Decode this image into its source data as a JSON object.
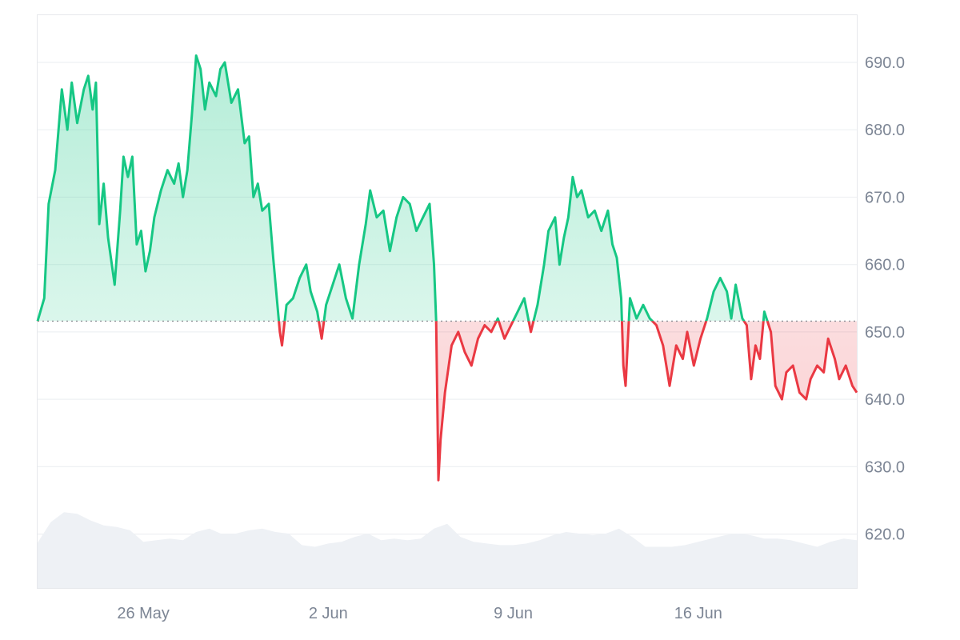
{
  "chart_data": {
    "type": "line",
    "title": "",
    "xlabel": "",
    "ylabel": "",
    "baseline": 651.6,
    "x_range": [
      "2025-05-22",
      "2025-06-22"
    ],
    "ylim": [
      612,
      697
    ],
    "grid": true,
    "colors": {
      "above": "#16c784",
      "below": "#ea3943",
      "above_fill": "#16c784",
      "below_fill": "#ea3943",
      "volume": "#eef1f5",
      "grid": "#eef0f3",
      "baseline": "#8c8f96",
      "tick_text": "#7d8695"
    },
    "y_ticks": [
      {
        "value": 620,
        "label": "620.0"
      },
      {
        "value": 630,
        "label": "630.0"
      },
      {
        "value": 640,
        "label": "640.0"
      },
      {
        "value": 650,
        "label": "650.0"
      },
      {
        "value": 660,
        "label": "660.0"
      },
      {
        "value": 670,
        "label": "670.0"
      },
      {
        "value": 680,
        "label": "680.0"
      },
      {
        "value": 690,
        "label": "690.0"
      }
    ],
    "x_ticks": [
      {
        "value": "2025-05-26",
        "label": "26 May"
      },
      {
        "value": "2025-06-02",
        "label": "2 Jun"
      },
      {
        "value": "2025-06-09",
        "label": "9 Jun"
      },
      {
        "value": "2025-06-16",
        "label": "16 Jun"
      }
    ],
    "series": [
      {
        "values": [
          [
            "2025-05-22T00:00",
            651.6
          ],
          [
            "2025-05-22T06:00",
            655
          ],
          [
            "2025-05-22T10:00",
            669
          ],
          [
            "2025-05-22T16:00",
            674
          ],
          [
            "2025-05-22T22:00",
            686
          ],
          [
            "2025-05-23T03:00",
            680
          ],
          [
            "2025-05-23T07:00",
            687
          ],
          [
            "2025-05-23T12:00",
            681
          ],
          [
            "2025-05-23T18:00",
            686
          ],
          [
            "2025-05-23T22:00",
            688
          ],
          [
            "2025-05-24T02:00",
            683
          ],
          [
            "2025-05-24T05:00",
            687
          ],
          [
            "2025-05-24T08:00",
            666
          ],
          [
            "2025-05-24T12:00",
            672
          ],
          [
            "2025-05-24T16:00",
            664
          ],
          [
            "2025-05-24T22:00",
            657
          ],
          [
            "2025-05-25T03:00",
            668
          ],
          [
            "2025-05-25T06:00",
            676
          ],
          [
            "2025-05-25T10:00",
            673
          ],
          [
            "2025-05-25T14:00",
            676
          ],
          [
            "2025-05-25T18:00",
            663
          ],
          [
            "2025-05-25T22:00",
            665
          ],
          [
            "2025-05-26T02:00",
            659
          ],
          [
            "2025-05-26T06:00",
            662
          ],
          [
            "2025-05-26T10:00",
            667
          ],
          [
            "2025-05-26T16:00",
            671
          ],
          [
            "2025-05-26T22:00",
            674
          ],
          [
            "2025-05-27T04:00",
            672
          ],
          [
            "2025-05-27T08:00",
            675
          ],
          [
            "2025-05-27T12:00",
            670
          ],
          [
            "2025-05-27T16:00",
            674
          ],
          [
            "2025-05-27T20:00",
            682
          ],
          [
            "2025-05-28T00:00",
            691
          ],
          [
            "2025-05-28T04:00",
            689
          ],
          [
            "2025-05-28T08:00",
            683
          ],
          [
            "2025-05-28T12:00",
            687
          ],
          [
            "2025-05-28T18:00",
            685
          ],
          [
            "2025-05-28T22:00",
            689
          ],
          [
            "2025-05-29T02:00",
            690
          ],
          [
            "2025-05-29T08:00",
            684
          ],
          [
            "2025-05-29T14:00",
            686
          ],
          [
            "2025-05-29T20:00",
            678
          ],
          [
            "2025-05-30T00:00",
            679
          ],
          [
            "2025-05-30T04:00",
            670
          ],
          [
            "2025-05-30T08:00",
            672
          ],
          [
            "2025-05-30T12:00",
            668
          ],
          [
            "2025-05-30T18:00",
            669
          ],
          [
            "2025-05-30T22:00",
            661
          ],
          [
            "2025-05-31T04:00",
            650
          ],
          [
            "2025-05-31T06:00",
            648
          ],
          [
            "2025-05-31T10:00",
            654
          ],
          [
            "2025-05-31T16:00",
            655
          ],
          [
            "2025-05-31T22:00",
            658
          ],
          [
            "2025-06-01T04:00",
            660
          ],
          [
            "2025-06-01T08:00",
            656
          ],
          [
            "2025-06-01T14:00",
            653
          ],
          [
            "2025-06-01T18:00",
            649
          ],
          [
            "2025-06-01T22:00",
            654
          ],
          [
            "2025-06-02T04:00",
            657
          ],
          [
            "2025-06-02T10:00",
            660
          ],
          [
            "2025-06-02T16:00",
            655
          ],
          [
            "2025-06-02T22:00",
            652
          ],
          [
            "2025-06-03T04:00",
            660
          ],
          [
            "2025-06-03T10:00",
            666
          ],
          [
            "2025-06-03T14:00",
            671
          ],
          [
            "2025-06-03T20:00",
            667
          ],
          [
            "2025-06-04T02:00",
            668
          ],
          [
            "2025-06-04T08:00",
            662
          ],
          [
            "2025-06-04T14:00",
            667
          ],
          [
            "2025-06-04T20:00",
            670
          ],
          [
            "2025-06-05T02:00",
            669
          ],
          [
            "2025-06-05T08:00",
            665
          ],
          [
            "2025-06-05T14:00",
            667
          ],
          [
            "2025-06-05T20:00",
            669
          ],
          [
            "2025-06-06T00:00",
            660
          ],
          [
            "2025-06-06T02:00",
            651.6
          ],
          [
            "2025-06-06T04:00",
            628
          ],
          [
            "2025-06-06T06:00",
            634
          ],
          [
            "2025-06-06T10:00",
            641
          ],
          [
            "2025-06-06T16:00",
            648
          ],
          [
            "2025-06-06T22:00",
            650
          ],
          [
            "2025-06-07T04:00",
            647
          ],
          [
            "2025-06-07T10:00",
            645
          ],
          [
            "2025-06-07T16:00",
            649
          ],
          [
            "2025-06-07T22:00",
            651
          ],
          [
            "2025-06-08T04:00",
            650
          ],
          [
            "2025-06-08T10:00",
            652
          ],
          [
            "2025-06-08T16:00",
            649
          ],
          [
            "2025-06-08T22:00",
            651
          ],
          [
            "2025-06-09T04:00",
            653
          ],
          [
            "2025-06-09T10:00",
            655
          ],
          [
            "2025-06-09T16:00",
            650
          ],
          [
            "2025-06-09T22:00",
            654
          ],
          [
            "2025-06-10T04:00",
            660
          ],
          [
            "2025-06-10T08:00",
            665
          ],
          [
            "2025-06-10T14:00",
            667
          ],
          [
            "2025-06-10T18:00",
            660
          ],
          [
            "2025-06-10T22:00",
            664
          ],
          [
            "2025-06-11T02:00",
            667
          ],
          [
            "2025-06-11T06:00",
            673
          ],
          [
            "2025-06-11T10:00",
            670
          ],
          [
            "2025-06-11T14:00",
            671
          ],
          [
            "2025-06-11T20:00",
            667
          ],
          [
            "2025-06-12T02:00",
            668
          ],
          [
            "2025-06-12T08:00",
            665
          ],
          [
            "2025-06-12T14:00",
            668
          ],
          [
            "2025-06-12T18:00",
            663
          ],
          [
            "2025-06-12T22:00",
            661
          ],
          [
            "2025-06-13T02:00",
            655
          ],
          [
            "2025-06-13T04:00",
            645
          ],
          [
            "2025-06-13T06:00",
            642
          ],
          [
            "2025-06-13T10:00",
            655
          ],
          [
            "2025-06-13T16:00",
            652
          ],
          [
            "2025-06-13T22:00",
            654
          ],
          [
            "2025-06-14T04:00",
            652
          ],
          [
            "2025-06-14T10:00",
            651
          ],
          [
            "2025-06-14T16:00",
            648
          ],
          [
            "2025-06-14T22:00",
            642
          ],
          [
            "2025-06-15T04:00",
            648
          ],
          [
            "2025-06-15T10:00",
            646
          ],
          [
            "2025-06-15T14:00",
            650
          ],
          [
            "2025-06-15T20:00",
            645
          ],
          [
            "2025-06-16T02:00",
            649
          ],
          [
            "2025-06-16T08:00",
            652
          ],
          [
            "2025-06-16T14:00",
            656
          ],
          [
            "2025-06-16T20:00",
            658
          ],
          [
            "2025-06-17T02:00",
            656
          ],
          [
            "2025-06-17T06:00",
            652
          ],
          [
            "2025-06-17T10:00",
            657
          ],
          [
            "2025-06-17T16:00",
            652
          ],
          [
            "2025-06-17T20:00",
            651
          ],
          [
            "2025-06-18T00:00",
            643
          ],
          [
            "2025-06-18T04:00",
            648
          ],
          [
            "2025-06-18T08:00",
            646
          ],
          [
            "2025-06-18T12:00",
            653
          ],
          [
            "2025-06-18T18:00",
            650
          ],
          [
            "2025-06-18T22:00",
            642
          ],
          [
            "2025-06-19T04:00",
            640
          ],
          [
            "2025-06-19T08:00",
            644
          ],
          [
            "2025-06-19T14:00",
            645
          ],
          [
            "2025-06-19T20:00",
            641
          ],
          [
            "2025-06-20T02:00",
            640
          ],
          [
            "2025-06-20T06:00",
            643
          ],
          [
            "2025-06-20T12:00",
            645
          ],
          [
            "2025-06-20T18:00",
            644
          ],
          [
            "2025-06-20T22:00",
            649
          ],
          [
            "2025-06-21T04:00",
            646
          ],
          [
            "2025-06-21T08:00",
            643
          ],
          [
            "2025-06-21T14:00",
            645
          ],
          [
            "2025-06-21T20:00",
            642
          ],
          [
            "2025-06-22T00:00",
            641
          ]
        ]
      }
    ],
    "volume_relative": [
      [
        "2025-05-22T00:00",
        0.55
      ],
      [
        "2025-05-22T12:00",
        0.8
      ],
      [
        "2025-05-23T00:00",
        0.92
      ],
      [
        "2025-05-23T12:00",
        0.9
      ],
      [
        "2025-05-24T00:00",
        0.82
      ],
      [
        "2025-05-24T12:00",
        0.76
      ],
      [
        "2025-05-25T00:00",
        0.74
      ],
      [
        "2025-05-25T12:00",
        0.7
      ],
      [
        "2025-05-26T00:00",
        0.56
      ],
      [
        "2025-05-26T12:00",
        0.58
      ],
      [
        "2025-05-27T00:00",
        0.6
      ],
      [
        "2025-05-27T12:00",
        0.58
      ],
      [
        "2025-05-28T00:00",
        0.68
      ],
      [
        "2025-05-28T12:00",
        0.72
      ],
      [
        "2025-05-29T00:00",
        0.65
      ],
      [
        "2025-05-29T12:00",
        0.66
      ],
      [
        "2025-05-30T00:00",
        0.7
      ],
      [
        "2025-05-30T12:00",
        0.72
      ],
      [
        "2025-05-31T00:00",
        0.68
      ],
      [
        "2025-05-31T12:00",
        0.66
      ],
      [
        "2025-06-01T00:00",
        0.52
      ],
      [
        "2025-06-01T12:00",
        0.5
      ],
      [
        "2025-06-02T00:00",
        0.54
      ],
      [
        "2025-06-02T12:00",
        0.56
      ],
      [
        "2025-06-03T00:00",
        0.62
      ],
      [
        "2025-06-03T12:00",
        0.66
      ],
      [
        "2025-06-04T00:00",
        0.58
      ],
      [
        "2025-06-04T12:00",
        0.6
      ],
      [
        "2025-06-05T00:00",
        0.58
      ],
      [
        "2025-06-05T12:00",
        0.6
      ],
      [
        "2025-06-06T00:00",
        0.72
      ],
      [
        "2025-06-06T12:00",
        0.78
      ],
      [
        "2025-06-07T00:00",
        0.62
      ],
      [
        "2025-06-07T12:00",
        0.56
      ],
      [
        "2025-06-08T00:00",
        0.54
      ],
      [
        "2025-06-08T12:00",
        0.52
      ],
      [
        "2025-06-09T00:00",
        0.52
      ],
      [
        "2025-06-09T12:00",
        0.54
      ],
      [
        "2025-06-10T00:00",
        0.58
      ],
      [
        "2025-06-10T12:00",
        0.64
      ],
      [
        "2025-06-11T00:00",
        0.68
      ],
      [
        "2025-06-11T12:00",
        0.66
      ],
      [
        "2025-06-12T00:00",
        0.64
      ],
      [
        "2025-06-12T12:00",
        0.66
      ],
      [
        "2025-06-13T00:00",
        0.72
      ],
      [
        "2025-06-13T12:00",
        0.62
      ],
      [
        "2025-06-14T00:00",
        0.5
      ],
      [
        "2025-06-14T12:00",
        0.5
      ],
      [
        "2025-06-15T00:00",
        0.5
      ],
      [
        "2025-06-15T12:00",
        0.52
      ],
      [
        "2025-06-16T00:00",
        0.56
      ],
      [
        "2025-06-16T12:00",
        0.6
      ],
      [
        "2025-06-17T00:00",
        0.64
      ],
      [
        "2025-06-17T12:00",
        0.66
      ],
      [
        "2025-06-18T00:00",
        0.64
      ],
      [
        "2025-06-18T12:00",
        0.6
      ],
      [
        "2025-06-19T00:00",
        0.6
      ],
      [
        "2025-06-19T12:00",
        0.58
      ],
      [
        "2025-06-20T00:00",
        0.54
      ],
      [
        "2025-06-20T12:00",
        0.5
      ],
      [
        "2025-06-21T00:00",
        0.56
      ],
      [
        "2025-06-21T12:00",
        0.6
      ],
      [
        "2025-06-22T00:00",
        0.58
      ]
    ]
  }
}
